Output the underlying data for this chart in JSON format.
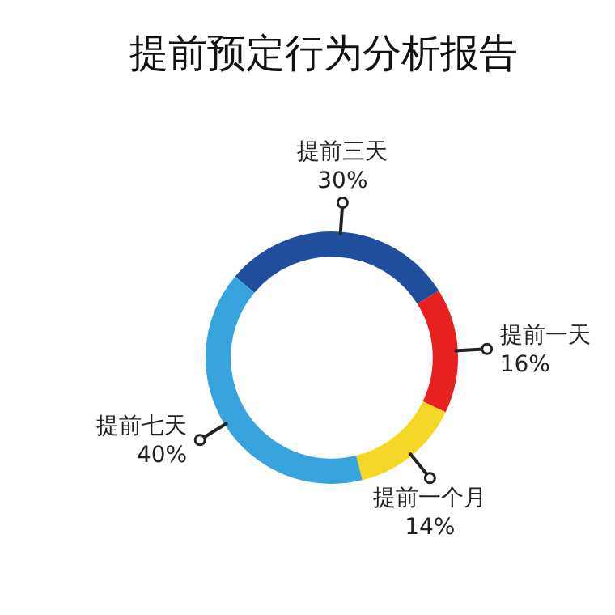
{
  "chart_data": {
    "type": "donut",
    "title": "提前预定行为分析报告",
    "categories": [
      "提前三天",
      "提前一天",
      "提前一个月",
      "提前七天"
    ],
    "values": [
      30,
      16,
      14,
      40
    ],
    "colors": [
      "#1f4e9c",
      "#e8201f",
      "#f5d726",
      "#36a3dc"
    ],
    "value_labels": [
      "30%",
      "16%",
      "14%",
      "40%"
    ],
    "legend": false
  }
}
